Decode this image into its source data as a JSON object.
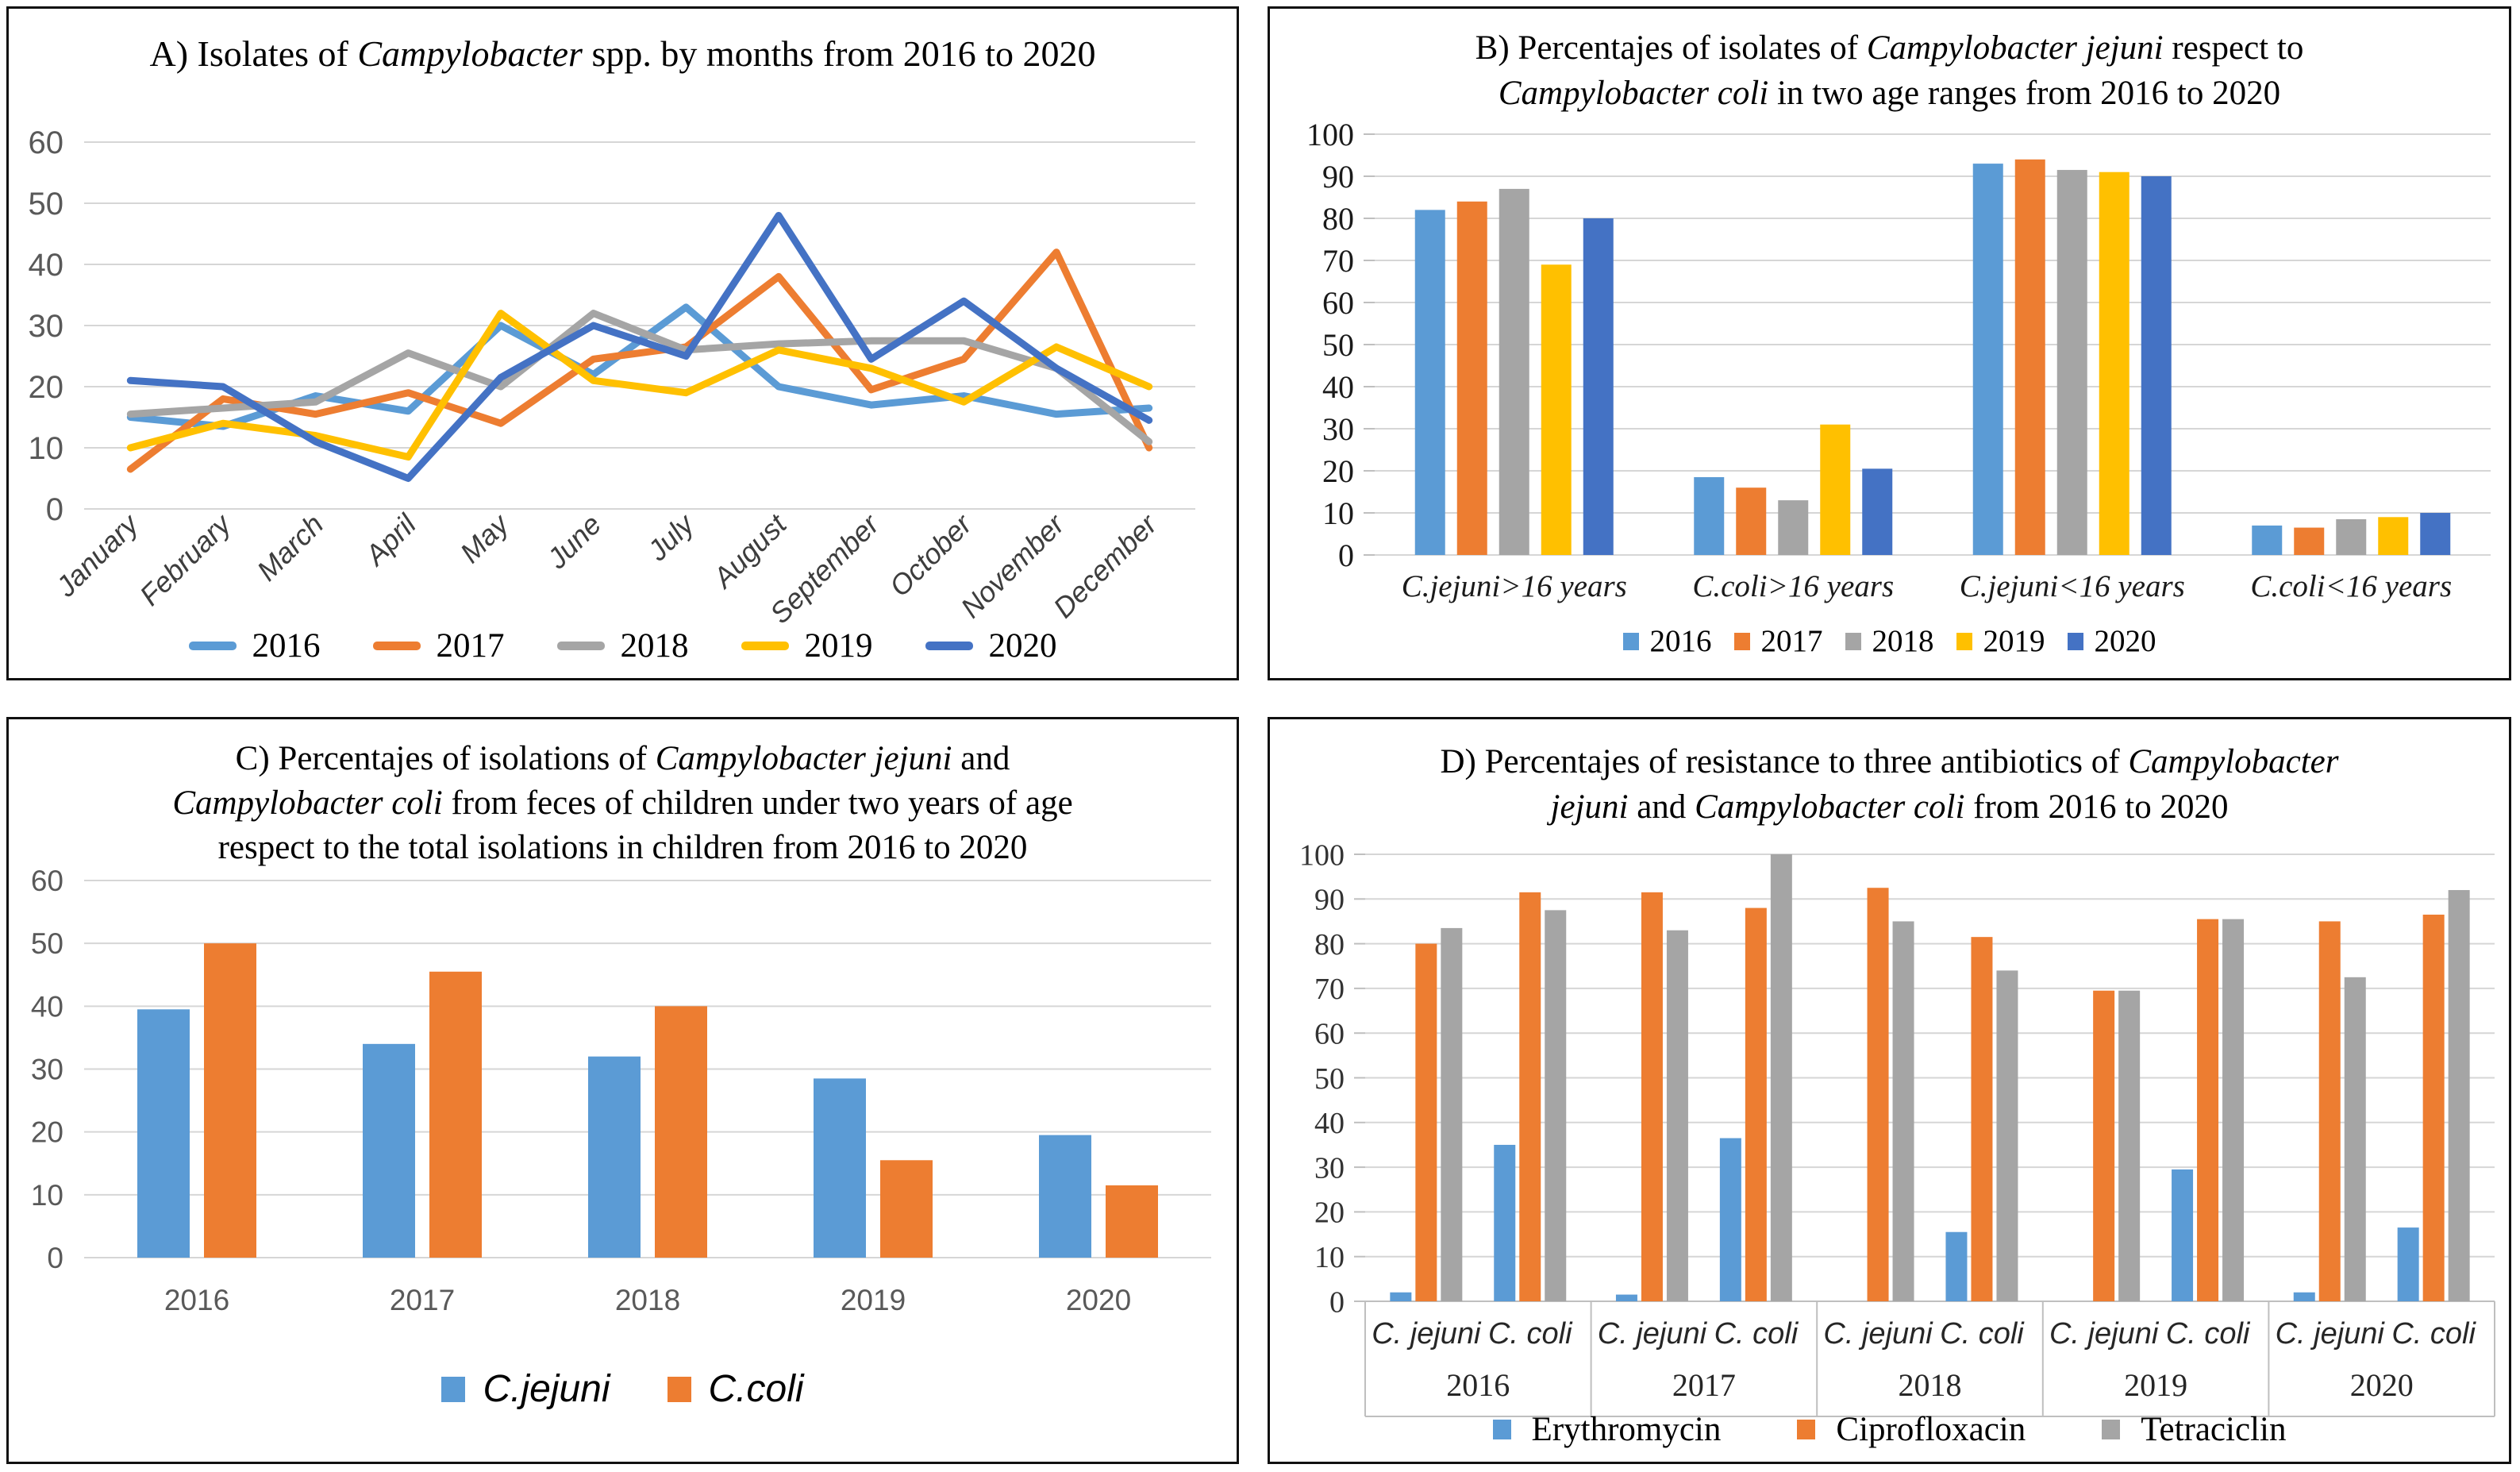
{
  "figure": {
    "background": "#ffffff",
    "border_color": "#111111"
  },
  "palette": {
    "blue_light": "#5B9BD5",
    "orange": "#ED7D31",
    "gray": "#A5A5A5",
    "yellow": "#FFC000",
    "blue_dark": "#4472C4",
    "gridline": "#D6D6D6",
    "axis_line": "#BFBFBF"
  },
  "panels": {
    "A": {
      "title_lines": [
        [
          {
            "text": "A) Isolates of "
          },
          {
            "text": "Campylobacter",
            "italic": true
          },
          {
            "text": " spp. by months from 2016 to 2020"
          }
        ]
      ]
    },
    "B": {
      "title_lines": [
        [
          {
            "text": "B) Percentajes of isolates of "
          },
          {
            "text": "Campylobacter jejuni",
            "italic": true
          },
          {
            "text": " respect to"
          }
        ],
        [
          {
            "text": "Campylobacter coli",
            "italic": true
          },
          {
            "text": " in two age ranges from 2016 to 2020"
          }
        ]
      ]
    },
    "C": {
      "title_lines": [
        [
          {
            "text": "C) Percentajes of isolations of "
          },
          {
            "text": "Campylobacter jejuni",
            "italic": true
          },
          {
            "text": " and"
          }
        ],
        [
          {
            "text": "Campylobacter coli",
            "italic": true
          },
          {
            "text": " from feces of children under two years of age"
          }
        ],
        [
          {
            "text": "respect to the total isolations in children from 2016 to 2020"
          }
        ]
      ]
    },
    "D": {
      "title_lines": [
        [
          {
            "text": "D) Percentajes of resistance to three antibiotics of "
          },
          {
            "text": "Campylobacter",
            "italic": true
          }
        ],
        [
          {
            "text": "jejuni",
            "italic": true
          },
          {
            "text": " and "
          },
          {
            "text": "Campylobacter coli",
            "italic": true
          },
          {
            "text": " from 2016 to 2020"
          }
        ]
      ]
    }
  },
  "chart_data": [
    {
      "id": "A",
      "type": "line",
      "title": "A) Isolates of Campylobacter spp. by months from 2016 to 2020",
      "x": [
        "January",
        "February",
        "March",
        "April",
        "May",
        "June",
        "July",
        "August",
        "September",
        "October",
        "November",
        "December"
      ],
      "ylim": [
        0,
        60
      ],
      "ytick_step": 10,
      "grid": true,
      "legend_position": "bottom",
      "series": [
        {
          "name": "2016",
          "color": "#5B9BD5",
          "values": [
            15,
            13.5,
            18.5,
            16,
            30,
            22,
            33,
            20,
            17,
            18.5,
            15.5,
            16.5
          ]
        },
        {
          "name": "2017",
          "color": "#ED7D31",
          "values": [
            6.5,
            18,
            15.5,
            19,
            14,
            24.5,
            26.5,
            38,
            19.5,
            24.5,
            42,
            10
          ]
        },
        {
          "name": "2018",
          "color": "#A5A5A5",
          "values": [
            15.5,
            16.5,
            17.5,
            25.5,
            20,
            32,
            26,
            27,
            27.5,
            27.5,
            23,
            11
          ]
        },
        {
          "name": "2019",
          "color": "#FFC000",
          "values": [
            10,
            14,
            12,
            8.5,
            32,
            21,
            19,
            26,
            23,
            17.5,
            26.5,
            20
          ]
        },
        {
          "name": "2020",
          "color": "#4472C4",
          "values": [
            21,
            20,
            11,
            5,
            21.5,
            30,
            25,
            48,
            24.5,
            34,
            23,
            14.5
          ]
        }
      ]
    },
    {
      "id": "B",
      "type": "bar",
      "title": "B) Percentajes of isolates of Campylobacter jejuni respect to Campylobacter coli in two age ranges from 2016 to 2020",
      "categories": [
        "C.jejuni>16 years",
        "C.coli>16 years",
        "C.jejuni<16 years",
        "C.coli<16 years"
      ],
      "ylim": [
        0,
        100
      ],
      "ytick_step": 10,
      "grid": true,
      "legend_position": "bottom",
      "series": [
        {
          "name": "2016",
          "color": "#5B9BD5",
          "values": [
            82,
            18.5,
            93,
            7
          ]
        },
        {
          "name": "2017",
          "color": "#ED7D31",
          "values": [
            84,
            16,
            94,
            6.5
          ]
        },
        {
          "name": "2018",
          "color": "#A5A5A5",
          "values": [
            87,
            13,
            91.5,
            8.5
          ]
        },
        {
          "name": "2019",
          "color": "#FFC000",
          "values": [
            69,
            31,
            91,
            9
          ]
        },
        {
          "name": "2020",
          "color": "#4472C4",
          "values": [
            80,
            20.5,
            90,
            10
          ]
        }
      ]
    },
    {
      "id": "C",
      "type": "bar",
      "title": "C) Percentajes of isolations of Campylobacter jejuni and Campylobacter coli from feces of children under two years of age respect to the total isolations in children from 2016 to 2020",
      "categories": [
        "2016",
        "2017",
        "2018",
        "2019",
        "2020"
      ],
      "ylim": [
        0,
        60
      ],
      "ytick_step": 10,
      "grid": true,
      "legend_position": "bottom",
      "series": [
        {
          "name": "C.jejuni",
          "color": "#5B9BD5",
          "values": [
            39.5,
            34,
            32,
            28.5,
            19.5
          ]
        },
        {
          "name": "C.coli",
          "color": "#ED7D31",
          "values": [
            50,
            45.5,
            40,
            15.5,
            11.5
          ]
        }
      ]
    },
    {
      "id": "D",
      "type": "bar",
      "title": "D) Percentajes of resistance to three antibiotics of Campylobacter jejuni and Campylobacter coli from 2016 to 2020",
      "groups": [
        {
          "label": "2016",
          "categories": [
            "C. jejuni",
            "C. coli"
          ]
        },
        {
          "label": "2017",
          "categories": [
            "C. jejuni",
            "C. coli"
          ]
        },
        {
          "label": "2018",
          "categories": [
            "C. jejuni",
            "C. coli"
          ]
        },
        {
          "label": "2019",
          "categories": [
            "C. jejuni",
            "C. coli"
          ]
        },
        {
          "label": "2020",
          "categories": [
            "C. jejuni",
            "C. coli"
          ]
        }
      ],
      "ylim": [
        0,
        100
      ],
      "ytick_step": 10,
      "grid": true,
      "legend_position": "bottom",
      "series": [
        {
          "name": "Erythromycin",
          "color": "#5B9BD5",
          "values": [
            2,
            35,
            1.5,
            36.5,
            0,
            15.5,
            0,
            29.5,
            2,
            16.5
          ]
        },
        {
          "name": "Ciprofloxacin",
          "color": "#ED7D31",
          "values": [
            80,
            91.5,
            91.5,
            88,
            92.5,
            81.5,
            69.5,
            85.5,
            85,
            86.5
          ]
        },
        {
          "name": "Tetraciclin",
          "color": "#A5A5A5",
          "values": [
            83.5,
            87.5,
            83,
            100,
            85,
            74,
            69.5,
            85.5,
            72.5,
            92
          ]
        }
      ]
    }
  ]
}
